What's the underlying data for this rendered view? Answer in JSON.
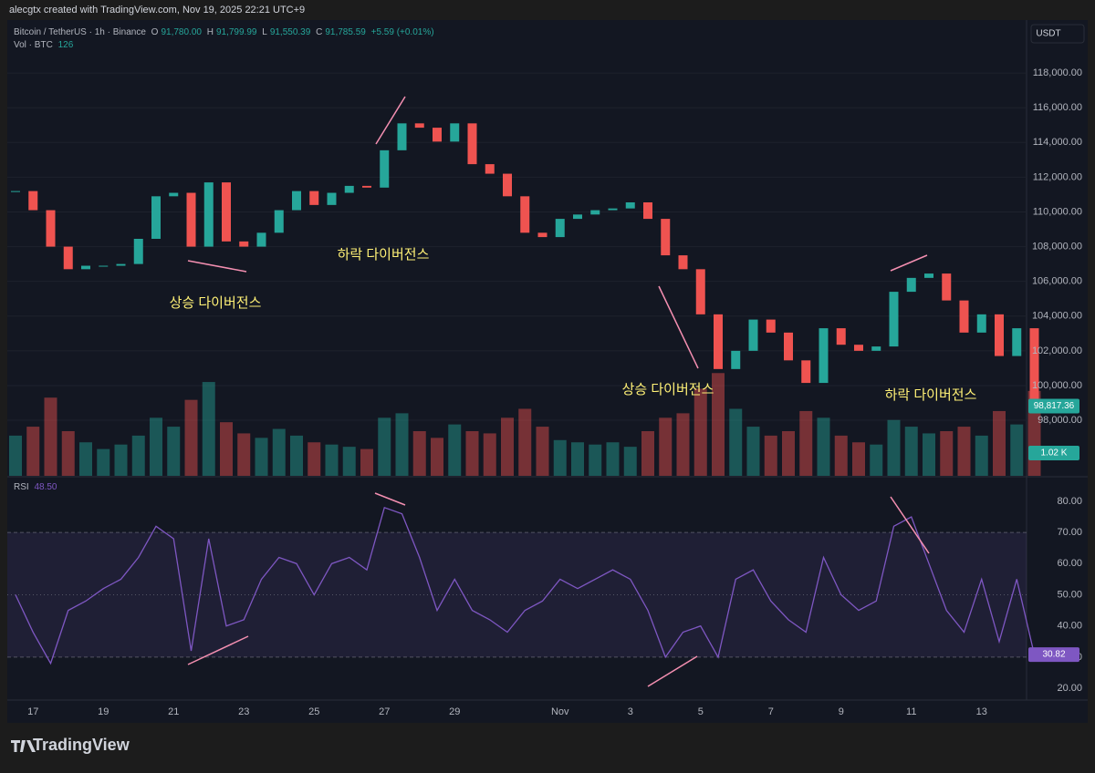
{
  "header": {
    "credit": "alecgtx created with TradingView.com, Nov 19, 2025 22:21 UTC+9"
  },
  "chart_data": {
    "type": "candlestick",
    "symbol": "Bitcoin / TetherUS · 1h · Binance",
    "ohlc": [
      {
        "label": "O",
        "value": "91,780.00"
      },
      {
        "label": "H",
        "value": "91,799.99"
      },
      {
        "label": "L",
        "value": "91,550.39"
      },
      {
        "label": "C",
        "value": "91,785.59"
      }
    ],
    "change": "+5.59 (+0.01%)",
    "volume_legend": {
      "label": "Vol · BTC",
      "value": "126"
    },
    "currency": "USDT",
    "categories": [
      null,
      "17",
      null,
      null,
      null,
      "19",
      null,
      null,
      null,
      "21",
      null,
      null,
      null,
      "23",
      null,
      null,
      null,
      "25",
      null,
      null,
      null,
      "27",
      null,
      null,
      null,
      "29",
      null,
      null,
      null,
      null,
      null,
      "Nov",
      null,
      null,
      null,
      "3",
      null,
      null,
      null,
      "5",
      null,
      null,
      null,
      "7",
      null,
      null,
      null,
      "9",
      null,
      null,
      null,
      "11",
      null,
      null,
      null,
      "13",
      null,
      null,
      null
    ],
    "close": [
      111200,
      110100,
      108000,
      106700,
      106900,
      106900,
      107000,
      108450,
      110900,
      111100,
      108000,
      111700,
      108300,
      108000,
      108800,
      110100,
      111200,
      110400,
      111100,
      111500,
      111400,
      113550,
      115100,
      114850,
      114050,
      115100,
      112750,
      112200,
      110900,
      108800,
      108550,
      109600,
      109850,
      110100,
      110200,
      110550,
      109600,
      107500,
      106700,
      104100,
      100950,
      102000,
      103800,
      103050,
      101450,
      100150,
      103300,
      102350,
      102000,
      102250,
      105400,
      106200,
      106450,
      104900,
      103050,
      104100,
      101700,
      103300,
      98817.36
    ],
    "up_color": "#26a69a",
    "down_color": "#ef5350",
    "volume": [
      1800,
      2200,
      3500,
      2000,
      1500,
      1200,
      1400,
      1800,
      2600,
      2200,
      3400,
      4200,
      2400,
      1900,
      1700,
      2100,
      1800,
      1500,
      1400,
      1300,
      1200,
      2600,
      2800,
      2000,
      1700,
      2300,
      2000,
      1900,
      2600,
      3000,
      2200,
      1600,
      1500,
      1400,
      1500,
      1300,
      2000,
      2600,
      2800,
      3900,
      4600,
      3000,
      2200,
      1800,
      2000,
      2900,
      2600,
      1800,
      1500,
      1400,
      2500,
      2200,
      1900,
      2000,
      2200,
      1800,
      2900,
      2300,
      3800
    ],
    "vlim": [
      0,
      20400
    ],
    "ylim": [
      94800,
      121050
    ],
    "yticks": [
      {
        "value": 98000,
        "label": "98,000.00"
      },
      {
        "value": 100000,
        "label": "100,000.00"
      },
      {
        "value": 102000,
        "label": "102,000.00"
      },
      {
        "value": 104000,
        "label": "104,000.00"
      },
      {
        "value": 106000,
        "label": "106,000.00"
      },
      {
        "value": 108000,
        "label": "108,000.00"
      },
      {
        "value": 110000,
        "label": "110,000.00"
      },
      {
        "value": 112000,
        "label": "112,000.00"
      },
      {
        "value": 114000,
        "label": "114,000.00"
      },
      {
        "value": 116000,
        "label": "116,000.00"
      },
      {
        "value": 118000,
        "label": "118,000.00"
      }
    ],
    "grid": true,
    "last_price": {
      "value": 98817.36,
      "label": "98,817.36"
    },
    "last_volume": {
      "value": 1020,
      "label": "1.02 K"
    },
    "annotations": [
      "상승 다이버전스",
      "하락 다이버전스",
      "상승 다이버전스",
      "하락 다이버전스"
    ],
    "rsi": {
      "name": "RSI",
      "legend_value": "48.50",
      "color": "#7e57c2",
      "values": [
        50,
        38,
        28,
        45,
        48,
        52,
        55,
        62,
        72,
        68,
        32,
        68,
        40,
        42,
        55,
        62,
        60,
        50,
        60,
        62,
        58,
        78,
        76,
        62,
        45,
        55,
        45,
        42,
        38,
        45,
        48,
        55,
        52,
        55,
        58,
        55,
        45,
        30,
        38,
        40,
        30,
        55,
        58,
        48,
        42,
        38,
        62,
        50,
        45,
        48,
        72,
        75,
        60,
        45,
        38,
        55,
        35,
        55,
        30.82
      ],
      "ylim": [
        17.1,
        87.3
      ],
      "yticks": [
        {
          "value": 20,
          "label": "20.00"
        },
        {
          "value": 30,
          "label": "30.00"
        },
        {
          "value": 40,
          "label": "40.00"
        },
        {
          "value": 50,
          "label": "50.00"
        },
        {
          "value": 60,
          "label": "60.00"
        },
        {
          "value": 70,
          "label": "70.00"
        },
        {
          "value": 80,
          "label": "80.00"
        }
      ],
      "bands": [
        30,
        70
      ],
      "mid": 50,
      "last": {
        "value": 30.82,
        "label": "30.82"
      }
    }
  },
  "footer": {
    "brand": "TradingView"
  }
}
